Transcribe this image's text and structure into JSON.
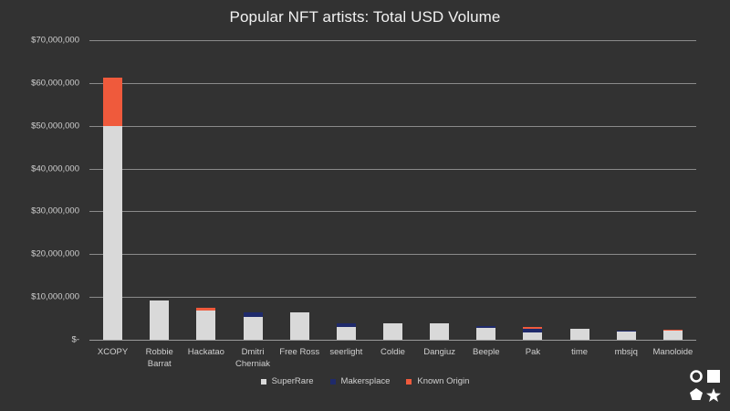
{
  "chart_data": {
    "type": "bar",
    "stacked": true,
    "title": "Popular NFT artists: Total USD Volume",
    "xlabel": "",
    "ylabel": "",
    "ylim": [
      0,
      70000000
    ],
    "y_ticks": [
      0,
      10000000,
      20000000,
      30000000,
      40000000,
      50000000,
      60000000,
      70000000
    ],
    "y_tick_labels": [
      "$-",
      "$10,000,000",
      "$20,000,000",
      "$30,000,000",
      "$40,000,000",
      "$50,000,000",
      "$60,000,000",
      "$70,000,000"
    ],
    "grid": true,
    "legend_position": "bottom",
    "categories": [
      "XCOPY",
      "Robbie Barrat",
      "Hackatao",
      "Dmitri Cherniak",
      "Free Ross",
      "seerlight",
      "Coldie",
      "Dangiuz",
      "Beeple",
      "Pak",
      "time",
      "mbsjq",
      "Manoloide"
    ],
    "category_lines": [
      [
        "XCOPY"
      ],
      [
        "Robbie",
        "Barrat"
      ],
      [
        "Hackatao"
      ],
      [
        "Dmitri",
        "Cherniak"
      ],
      [
        "Free Ross"
      ],
      [
        "seerlight"
      ],
      [
        "Coldie"
      ],
      [
        "Dangiuz"
      ],
      [
        "Beeple"
      ],
      [
        "Pak"
      ],
      [
        "time"
      ],
      [
        "mbsjq"
      ],
      [
        "Manoloide"
      ]
    ],
    "series": [
      {
        "name": "SuperRare",
        "color": "#d9d9d9",
        "values": [
          50000000,
          9100000,
          6800000,
          5400000,
          6300000,
          2900000,
          3800000,
          3800000,
          2700000,
          1700000,
          2600000,
          1900000,
          2100000
        ]
      },
      {
        "name": "Makersplace",
        "color": "#1f2a6b",
        "values": [
          0,
          0,
          0,
          1100000,
          0,
          1000000,
          0,
          0,
          600000,
          900000,
          0,
          300000,
          0
        ]
      },
      {
        "name": "Known Origin",
        "color": "#ef5a3c",
        "values": [
          11300000,
          0,
          700000,
          0,
          0,
          0,
          0,
          0,
          0,
          300000,
          0,
          0,
          200000
        ]
      }
    ]
  },
  "legend": {
    "items": [
      {
        "label": "SuperRare",
        "color": "#d9d9d9"
      },
      {
        "label": "Makersplace",
        "color": "#1f2a6b"
      },
      {
        "label": "Known Origin",
        "color": "#ef5a3c"
      }
    ]
  },
  "corner_icons": [
    "circle-icon",
    "square-icon",
    "pentagon-icon",
    "star-icon"
  ]
}
